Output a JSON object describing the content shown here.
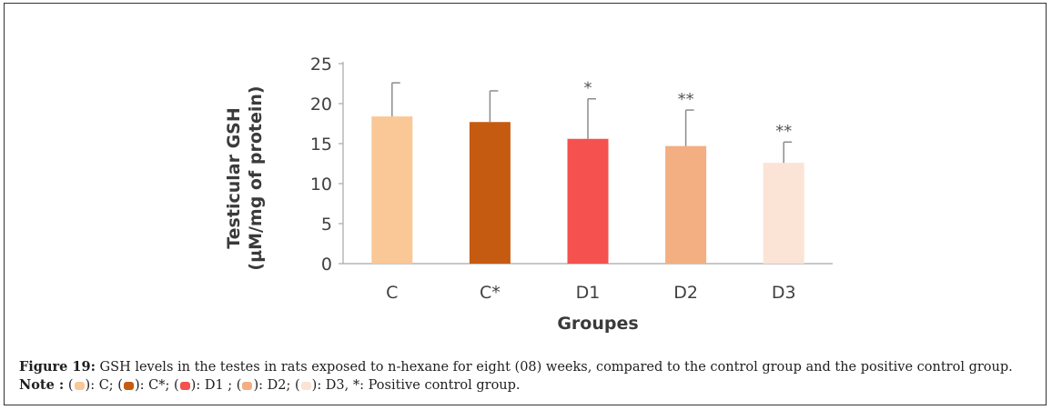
{
  "chart_data": {
    "type": "bar",
    "categories": [
      "C",
      "C*",
      "D1",
      "D2",
      "D3"
    ],
    "values": [
      18.4,
      17.7,
      15.6,
      14.7,
      12.6
    ],
    "errors": [
      4.2,
      3.9,
      5.0,
      4.5,
      2.6
    ],
    "significance": [
      "",
      "",
      "*",
      "**",
      "**"
    ],
    "colors": [
      "#fac797",
      "#c55a11",
      "#f4514f",
      "#f3ae81",
      "#fbe4d5"
    ],
    "ylim": [
      0,
      25
    ],
    "yticks": [
      "0",
      "5",
      "10",
      "15",
      "20",
      "25"
    ],
    "ylabel_line1": "Testicular GSH",
    "ylabel_line2": "(µM/mg of protein)",
    "xlabel": "Groupes",
    "grid": false
  },
  "caption": {
    "figure_label": "Figure 19:",
    "figure_text": " GSH levels in the testes in rats exposed to n-hexane for eight (08) weeks, compared to the control group and the positive control group.",
    "note_label": "Note :",
    "note_items": [
      {
        "label": ": C;"
      },
      {
        "label": ": C*;"
      },
      {
        "label": ": D1 ;"
      },
      {
        "label": ": D2;"
      },
      {
        "label": ": D3, *: Positive control group."
      }
    ]
  }
}
